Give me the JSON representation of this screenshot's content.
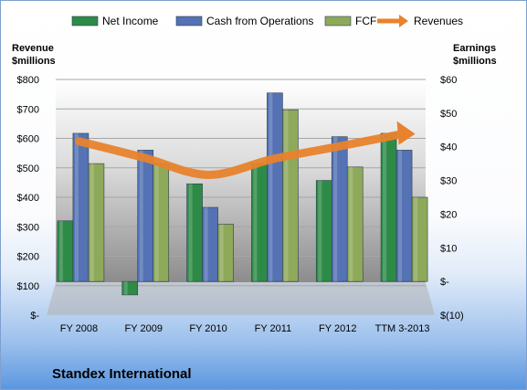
{
  "chart_data": {
    "type": "bar",
    "categories": [
      "FY 2008",
      "FY 2009",
      "FY 2010",
      "FY 2011",
      "FY 2012",
      "TTM 3-2013"
    ],
    "series": [
      {
        "name": "Net Income",
        "axis": "right",
        "values": [
          18,
          -4,
          29,
          35,
          30,
          44
        ],
        "color": "#2e8b47"
      },
      {
        "name": "Cash from Operations",
        "axis": "right",
        "values": [
          44,
          39,
          22,
          56,
          43,
          39
        ],
        "color": "#5472b4"
      },
      {
        "name": "FCF",
        "axis": "right",
        "values": [
          35,
          35,
          17,
          51,
          34,
          25
        ],
        "color": "#8ea95a"
      },
      {
        "name": "Revenues",
        "type": "line",
        "axis": "left",
        "values": [
          590,
          535,
          476,
          530,
          572,
          615
        ],
        "color": "#e8822c"
      }
    ],
    "left_axis": {
      "title_lines": [
        "Revenue",
        "$millions"
      ],
      "range": [
        0,
        800
      ],
      "ticks": [
        "$-",
        "$100",
        "$200",
        "$300",
        "$400",
        "$500",
        "$600",
        "$700",
        "$800"
      ]
    },
    "right_axis": {
      "title_lines": [
        "Earnings",
        "$millions"
      ],
      "range": [
        -10,
        60
      ],
      "ticks": [
        "$(10)",
        "$-",
        "$10",
        "$20",
        "$30",
        "$40",
        "$50",
        "$60"
      ]
    },
    "legend": {
      "position": "top",
      "entries": [
        "Net Income",
        "Cash from Operations",
        "FCF",
        "Revenues"
      ]
    },
    "grid": true,
    "title": "Standex International"
  }
}
